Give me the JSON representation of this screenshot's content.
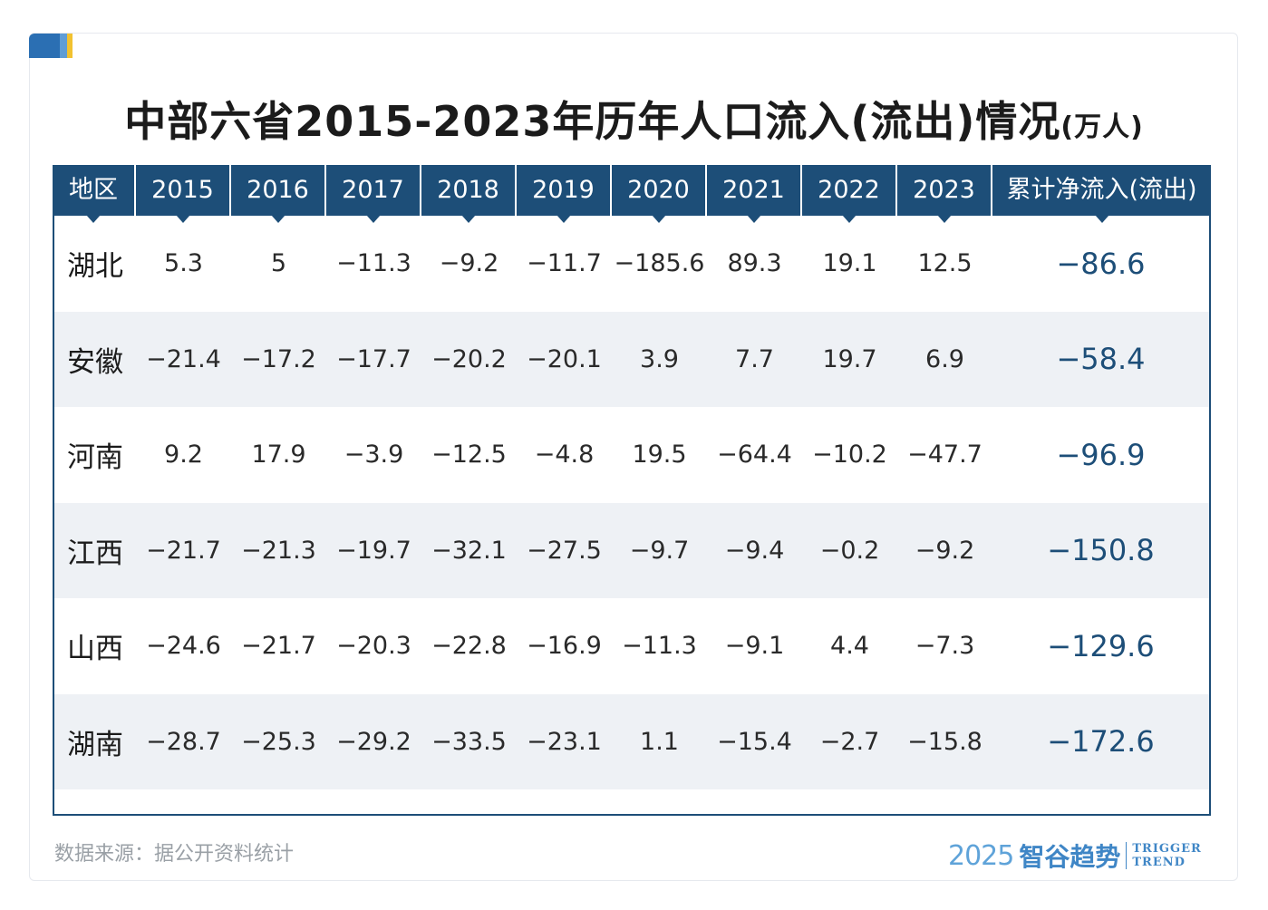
{
  "chart_data": {
    "type": "table",
    "title": "中部六省2015-2023年历年人口流入(流出)情况",
    "unit": "(万人)",
    "columns": [
      "地区",
      "2015",
      "2016",
      "2017",
      "2018",
      "2019",
      "2020",
      "2021",
      "2022",
      "2023",
      "累计净流入(流出)"
    ],
    "rows": [
      {
        "region": "湖北",
        "values": [
          "5.3",
          "5",
          "−11.3",
          "−9.2",
          "−11.7",
          "−185.6",
          "89.3",
          "19.1",
          "12.5"
        ],
        "total": "−86.6"
      },
      {
        "region": "安徽",
        "values": [
          "−21.4",
          "−17.2",
          "−17.7",
          "−20.2",
          "−20.1",
          "3.9",
          "7.7",
          "19.7",
          "6.9"
        ],
        "total": "−58.4"
      },
      {
        "region": "河南",
        "values": [
          "9.2",
          "17.9",
          "−3.9",
          "−12.5",
          "−4.8",
          "19.5",
          "−64.4",
          "−10.2",
          "−47.7"
        ],
        "total": "−96.9"
      },
      {
        "region": "江西",
        "values": [
          "−21.7",
          "−21.3",
          "−19.7",
          "−32.1",
          "−27.5",
          "−9.7",
          "−9.4",
          "−0.2",
          "−9.2"
        ],
        "total": "−150.8"
      },
      {
        "region": "山西",
        "values": [
          "−24.6",
          "−21.7",
          "−20.3",
          "−22.8",
          "−16.9",
          "−11.3",
          "−9.1",
          "4.4",
          "−7.3"
        ],
        "total": "−129.6"
      },
      {
        "region": "湖南",
        "values": [
          "−28.7",
          "−25.3",
          "−29.2",
          "−33.5",
          "−23.1",
          "1.1",
          "−15.4",
          "−2.7",
          "−15.8"
        ],
        "total": "−172.6"
      }
    ]
  },
  "footer": {
    "source": "数据来源：据公开资料统计",
    "brand_year": "2025",
    "brand_cn": "智谷趋势",
    "brand_en_1": "TRIGGER",
    "brand_en_2": "TREND"
  },
  "colors": {
    "header_bg": "#1d4e78",
    "row_alt_bg": "#eef1f5",
    "total_text": "#1d4e78",
    "brand": "#3f86c6"
  }
}
